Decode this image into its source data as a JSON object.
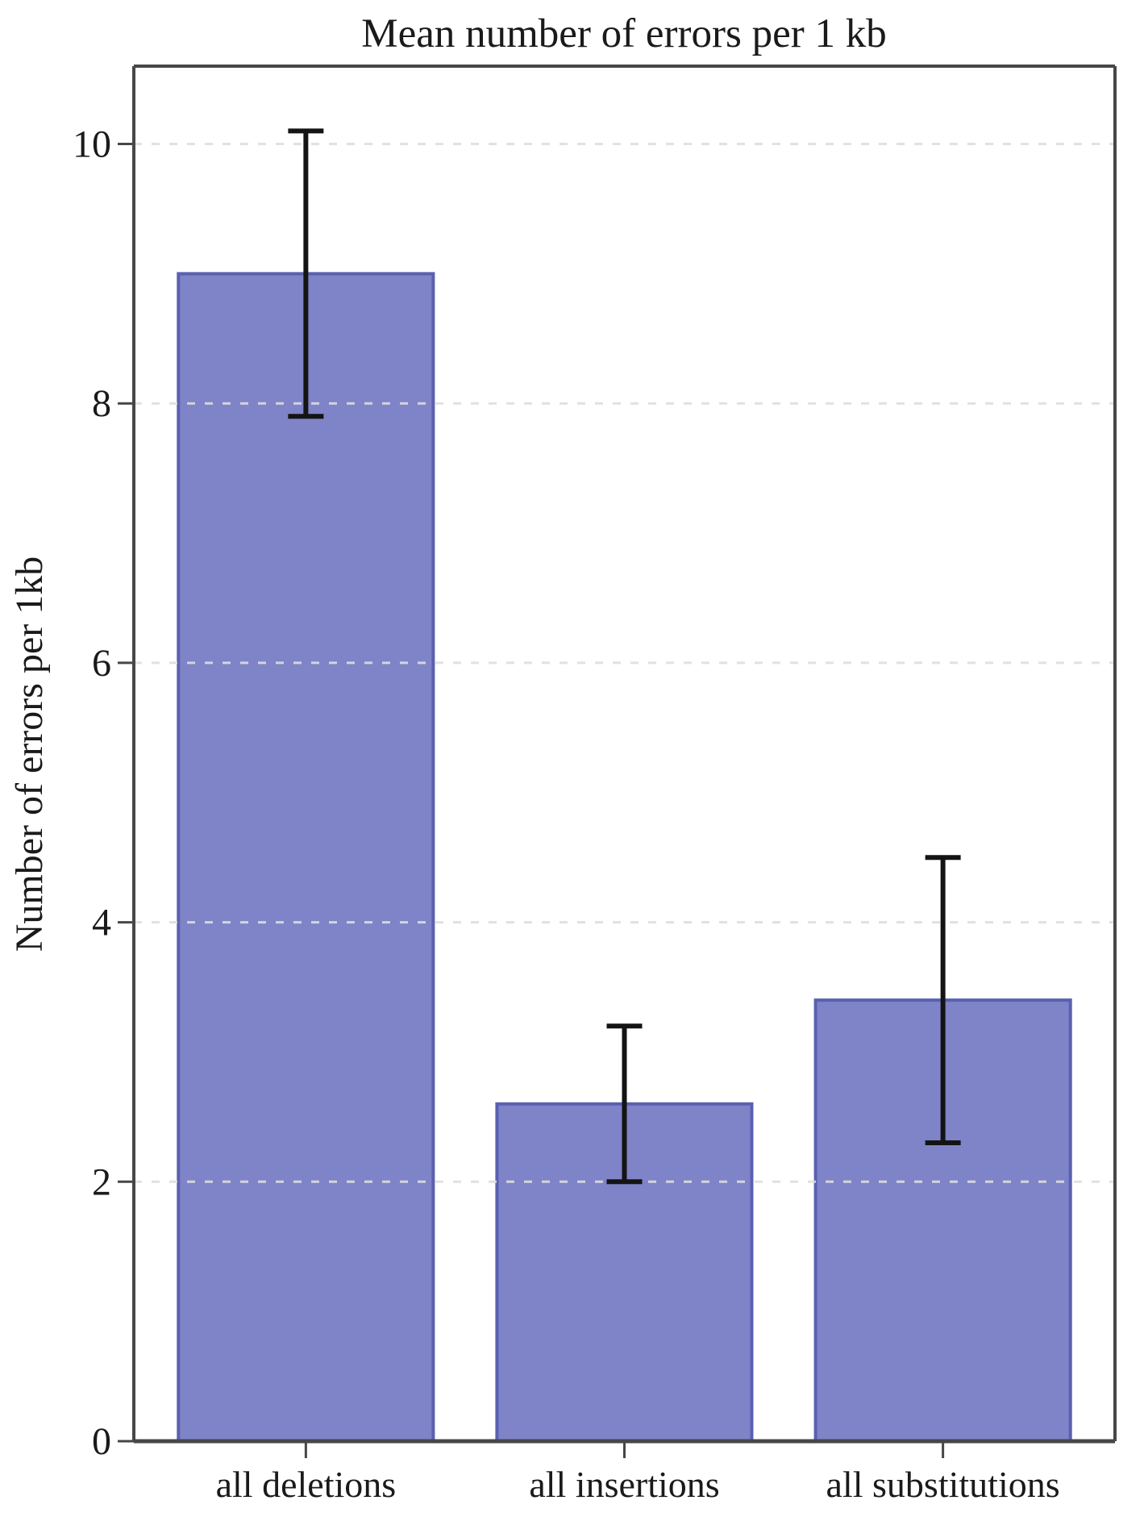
{
  "chart_data": {
    "type": "bar",
    "title": "Mean number of errors per 1 kb",
    "xlabel": "",
    "ylabel": "Number of errors per 1kb",
    "categories": [
      "all deletions",
      "all insertions",
      "all substitutions"
    ],
    "values": [
      9.0,
      2.6,
      3.4
    ],
    "error_low": [
      7.9,
      2.0,
      2.3
    ],
    "error_high": [
      10.1,
      3.2,
      4.5
    ],
    "yticks": [
      0,
      2,
      4,
      6,
      8,
      10
    ],
    "ylim": [
      0,
      10.6
    ],
    "grid": "horizontal-dashed",
    "legend": "none",
    "colors": {
      "bar_fill": "#7f83c7",
      "bar_edge": "#5a60b0",
      "errorbar": "#141414",
      "gridline": "#dedede",
      "spine": "#474747",
      "text": "#1a1a1a",
      "background": "#ffffff"
    }
  }
}
